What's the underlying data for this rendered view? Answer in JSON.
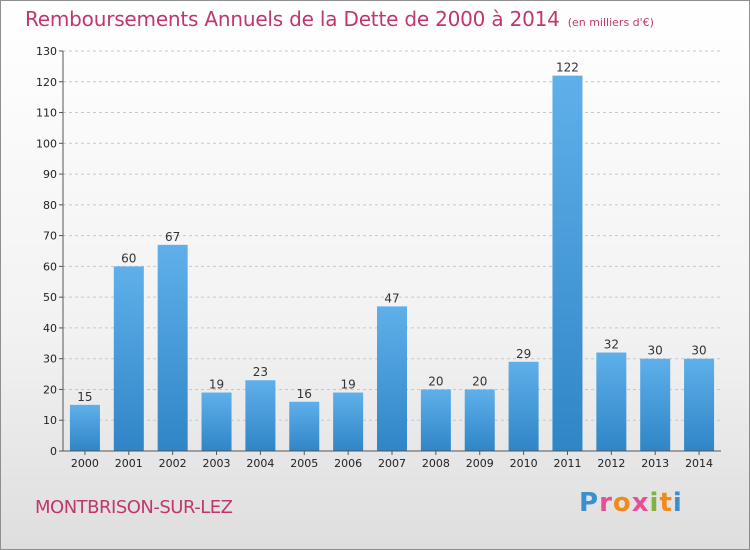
{
  "header": {
    "title": "Remboursements Annuels de la Dette de 2000 à 2014",
    "subtitle": "(en milliers d'€)"
  },
  "footer": {
    "commune": "MONTBRISON-SUR-LEZ",
    "logo_letters": [
      "P",
      "r",
      "o",
      "x",
      "i",
      "t",
      "i"
    ]
  },
  "colors": {
    "title": "#c0366f",
    "bar_top": "#5fb0ea",
    "bar_bottom": "#2f85c6",
    "logo": [
      "#3a8fd0",
      "#e84d97",
      "#f08a1c",
      "#e84d97",
      "#7cb342",
      "#f08a1c",
      "#3a8fd0"
    ]
  },
  "chart_data": {
    "type": "bar",
    "title": "Remboursements Annuels de la Dette de 2000 à 2014",
    "subtitle": "(en milliers d'€)",
    "categories": [
      "2000",
      "2001",
      "2002",
      "2003",
      "2004",
      "2005",
      "2006",
      "2007",
      "2008",
      "2009",
      "2010",
      "2011",
      "2012",
      "2013",
      "2014"
    ],
    "values": [
      15,
      60,
      67,
      19,
      23,
      16,
      19,
      47,
      20,
      20,
      29,
      122,
      32,
      30,
      30
    ],
    "ylim": [
      0,
      130
    ],
    "yticks": [
      0,
      10,
      20,
      30,
      40,
      50,
      60,
      70,
      80,
      90,
      100,
      110,
      120,
      130
    ],
    "grid": true,
    "xlabel": "",
    "ylabel": ""
  }
}
